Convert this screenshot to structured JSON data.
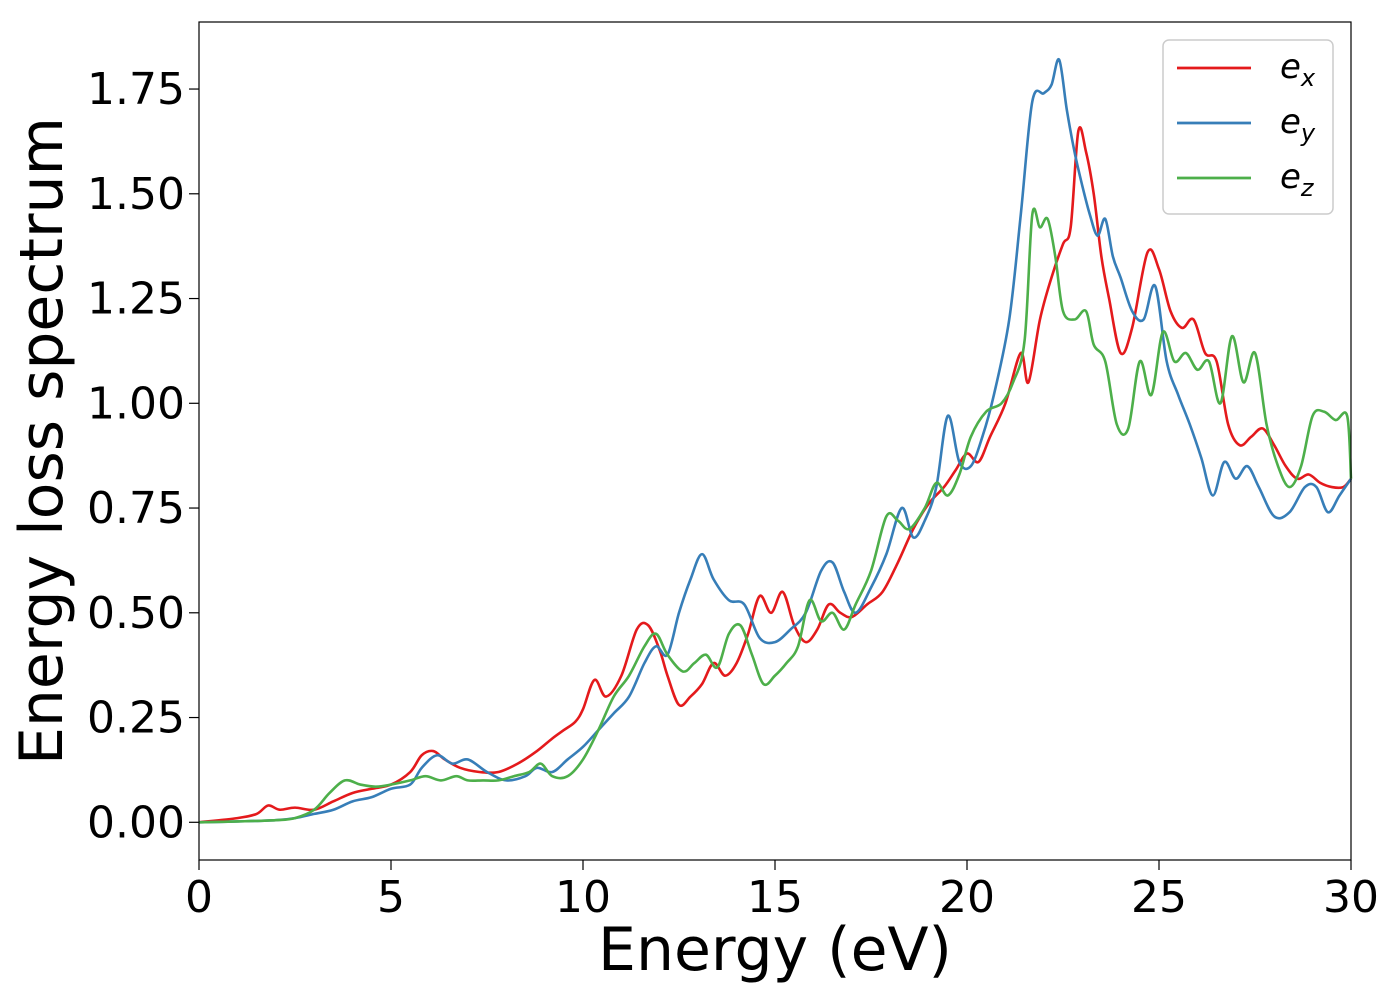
{
  "chart_data": {
    "type": "line",
    "title": "",
    "xlabel": "Energy (eV)",
    "ylabel": "Energy loss spectrum",
    "xlim": [
      0,
      30
    ],
    "ylim": [
      -0.09,
      1.91
    ],
    "xticks": [
      0,
      5,
      10,
      15,
      20,
      25,
      30
    ],
    "xtick_labels": [
      "0",
      "5",
      "10",
      "15",
      "20",
      "25",
      "30"
    ],
    "yticks": [
      0,
      0.25,
      0.5,
      0.75,
      1.0,
      1.25,
      1.5,
      1.75
    ],
    "ytick_labels": [
      "0.00",
      "0.25",
      "0.50",
      "0.75",
      "1.00",
      "1.25",
      "1.50",
      "1.75"
    ],
    "grid": false,
    "legend_position": "top-right",
    "series": [
      {
        "name": "e_x",
        "base": "e",
        "sub": "x",
        "color": "#e41a1c",
        "x": [
          0,
          1,
          1.5,
          1.8,
          2.1,
          2.5,
          3,
          3.5,
          4,
          4.5,
          5,
          5.5,
          5.8,
          6.1,
          6.4,
          6.8,
          7.3,
          7.8,
          8.3,
          8.8,
          9.2,
          9.5,
          9.8,
          10,
          10.3,
          10.6,
          11,
          11.4,
          11.7,
          12,
          12.2,
          12.5,
          12.8,
          13.1,
          13.4,
          13.7,
          14,
          14.3,
          14.6,
          14.9,
          15.2,
          15.5,
          15.8,
          16.1,
          16.4,
          16.7,
          17,
          17.4,
          17.8,
          18.2,
          18.6,
          19,
          19.4,
          19.7,
          20,
          20.3,
          20.6,
          21,
          21.4,
          21.6,
          21.9,
          22.2,
          22.5,
          22.7,
          22.9,
          23.1,
          23.3,
          23.5,
          23.7,
          24,
          24.3,
          24.7,
          25,
          25.3,
          25.6,
          25.9,
          26.2,
          26.5,
          26.8,
          27.1,
          27.4,
          27.7,
          28,
          28.3,
          28.6,
          28.9,
          29.2,
          29.5,
          29.8,
          30
        ],
        "y": [
          0,
          0.01,
          0.02,
          0.04,
          0.03,
          0.035,
          0.03,
          0.05,
          0.07,
          0.08,
          0.09,
          0.12,
          0.16,
          0.17,
          0.15,
          0.13,
          0.12,
          0.12,
          0.14,
          0.17,
          0.2,
          0.22,
          0.24,
          0.27,
          0.34,
          0.3,
          0.35,
          0.46,
          0.47,
          0.41,
          0.35,
          0.28,
          0.3,
          0.33,
          0.38,
          0.35,
          0.38,
          0.45,
          0.54,
          0.5,
          0.55,
          0.47,
          0.43,
          0.46,
          0.52,
          0.5,
          0.49,
          0.52,
          0.55,
          0.62,
          0.7,
          0.76,
          0.8,
          0.84,
          0.88,
          0.86,
          0.92,
          1.0,
          1.12,
          1.05,
          1.2,
          1.3,
          1.38,
          1.42,
          1.65,
          1.6,
          1.5,
          1.35,
          1.25,
          1.12,
          1.18,
          1.36,
          1.32,
          1.22,
          1.18,
          1.2,
          1.12,
          1.1,
          0.95,
          0.9,
          0.92,
          0.94,
          0.9,
          0.85,
          0.82,
          0.83,
          0.81,
          0.8,
          0.8,
          0.82
        ]
      },
      {
        "name": "e_y",
        "base": "e",
        "sub": "y",
        "color": "#377eb8",
        "x": [
          0,
          1,
          2,
          2.5,
          3,
          3.5,
          4,
          4.5,
          5,
          5.5,
          5.8,
          6.2,
          6.6,
          7,
          7.5,
          8,
          8.5,
          8.8,
          9.2,
          9.6,
          10,
          10.4,
          10.8,
          11.2,
          11.6,
          11.9,
          12.2,
          12.5,
          12.8,
          13.1,
          13.4,
          13.8,
          14.2,
          14.6,
          15,
          15.4,
          15.8,
          16.2,
          16.5,
          16.8,
          17.1,
          17.5,
          17.9,
          18.3,
          18.6,
          18.9,
          19.2,
          19.5,
          19.8,
          20.1,
          20.4,
          20.7,
          21.1,
          21.4,
          21.7,
          22,
          22.2,
          22.4,
          22.6,
          22.8,
          23,
          23.2,
          23.4,
          23.6,
          23.8,
          24,
          24.3,
          24.6,
          24.9,
          25.2,
          25.5,
          25.8,
          26.1,
          26.4,
          26.7,
          27,
          27.3,
          27.6,
          28,
          28.4,
          28.8,
          29.1,
          29.4,
          29.7,
          30
        ],
        "y": [
          0,
          0.002,
          0.005,
          0.01,
          0.02,
          0.03,
          0.05,
          0.06,
          0.08,
          0.09,
          0.13,
          0.16,
          0.14,
          0.15,
          0.12,
          0.1,
          0.11,
          0.13,
          0.12,
          0.15,
          0.18,
          0.22,
          0.26,
          0.3,
          0.38,
          0.42,
          0.4,
          0.5,
          0.58,
          0.64,
          0.58,
          0.53,
          0.52,
          0.44,
          0.43,
          0.46,
          0.5,
          0.6,
          0.62,
          0.55,
          0.5,
          0.56,
          0.64,
          0.75,
          0.68,
          0.72,
          0.8,
          0.97,
          0.86,
          0.85,
          0.92,
          1.02,
          1.2,
          1.45,
          1.72,
          1.74,
          1.76,
          1.82,
          1.7,
          1.6,
          1.52,
          1.45,
          1.4,
          1.44,
          1.35,
          1.3,
          1.22,
          1.2,
          1.28,
          1.1,
          1.02,
          0.95,
          0.87,
          0.78,
          0.86,
          0.82,
          0.85,
          0.8,
          0.73,
          0.74,
          0.8,
          0.8,
          0.74,
          0.78,
          0.82
        ]
      },
      {
        "name": "e_z",
        "base": "e",
        "sub": "z",
        "color": "#4daf4a",
        "x": [
          0,
          1,
          2,
          2.5,
          3,
          3.4,
          3.8,
          4.2,
          4.6,
          5,
          5.5,
          5.9,
          6.3,
          6.7,
          7,
          7.4,
          7.8,
          8.2,
          8.6,
          8.9,
          9.2,
          9.6,
          10,
          10.4,
          10.8,
          11.2,
          11.6,
          11.9,
          12.2,
          12.6,
          12.9,
          13.2,
          13.5,
          13.8,
          14.1,
          14.4,
          14.7,
          15,
          15.3,
          15.6,
          15.9,
          16.2,
          16.5,
          16.8,
          17.1,
          17.5,
          17.9,
          18.2,
          18.5,
          18.9,
          19.2,
          19.5,
          19.8,
          20.1,
          20.5,
          20.9,
          21.2,
          21.5,
          21.7,
          21.9,
          22.1,
          22.3,
          22.5,
          22.8,
          23.1,
          23.3,
          23.6,
          23.9,
          24.2,
          24.5,
          24.8,
          25.1,
          25.4,
          25.7,
          26,
          26.3,
          26.6,
          26.9,
          27.2,
          27.5,
          27.8,
          28.1,
          28.4,
          28.7,
          29,
          29.3,
          29.6,
          29.9,
          30
        ],
        "y": [
          0,
          0.002,
          0.005,
          0.01,
          0.03,
          0.07,
          0.1,
          0.09,
          0.085,
          0.09,
          0.1,
          0.11,
          0.1,
          0.11,
          0.1,
          0.1,
          0.1,
          0.11,
          0.12,
          0.14,
          0.11,
          0.11,
          0.15,
          0.22,
          0.3,
          0.35,
          0.42,
          0.45,
          0.4,
          0.36,
          0.38,
          0.4,
          0.37,
          0.45,
          0.47,
          0.4,
          0.33,
          0.35,
          0.38,
          0.42,
          0.53,
          0.48,
          0.5,
          0.46,
          0.52,
          0.6,
          0.73,
          0.72,
          0.7,
          0.75,
          0.81,
          0.78,
          0.83,
          0.92,
          0.98,
          1.0,
          1.05,
          1.15,
          1.45,
          1.42,
          1.44,
          1.35,
          1.22,
          1.2,
          1.22,
          1.14,
          1.1,
          0.95,
          0.94,
          1.1,
          1.02,
          1.17,
          1.1,
          1.12,
          1.08,
          1.1,
          1.0,
          1.16,
          1.05,
          1.12,
          0.95,
          0.85,
          0.8,
          0.85,
          0.97,
          0.98,
          0.96,
          0.97,
          0.82
        ]
      }
    ]
  }
}
